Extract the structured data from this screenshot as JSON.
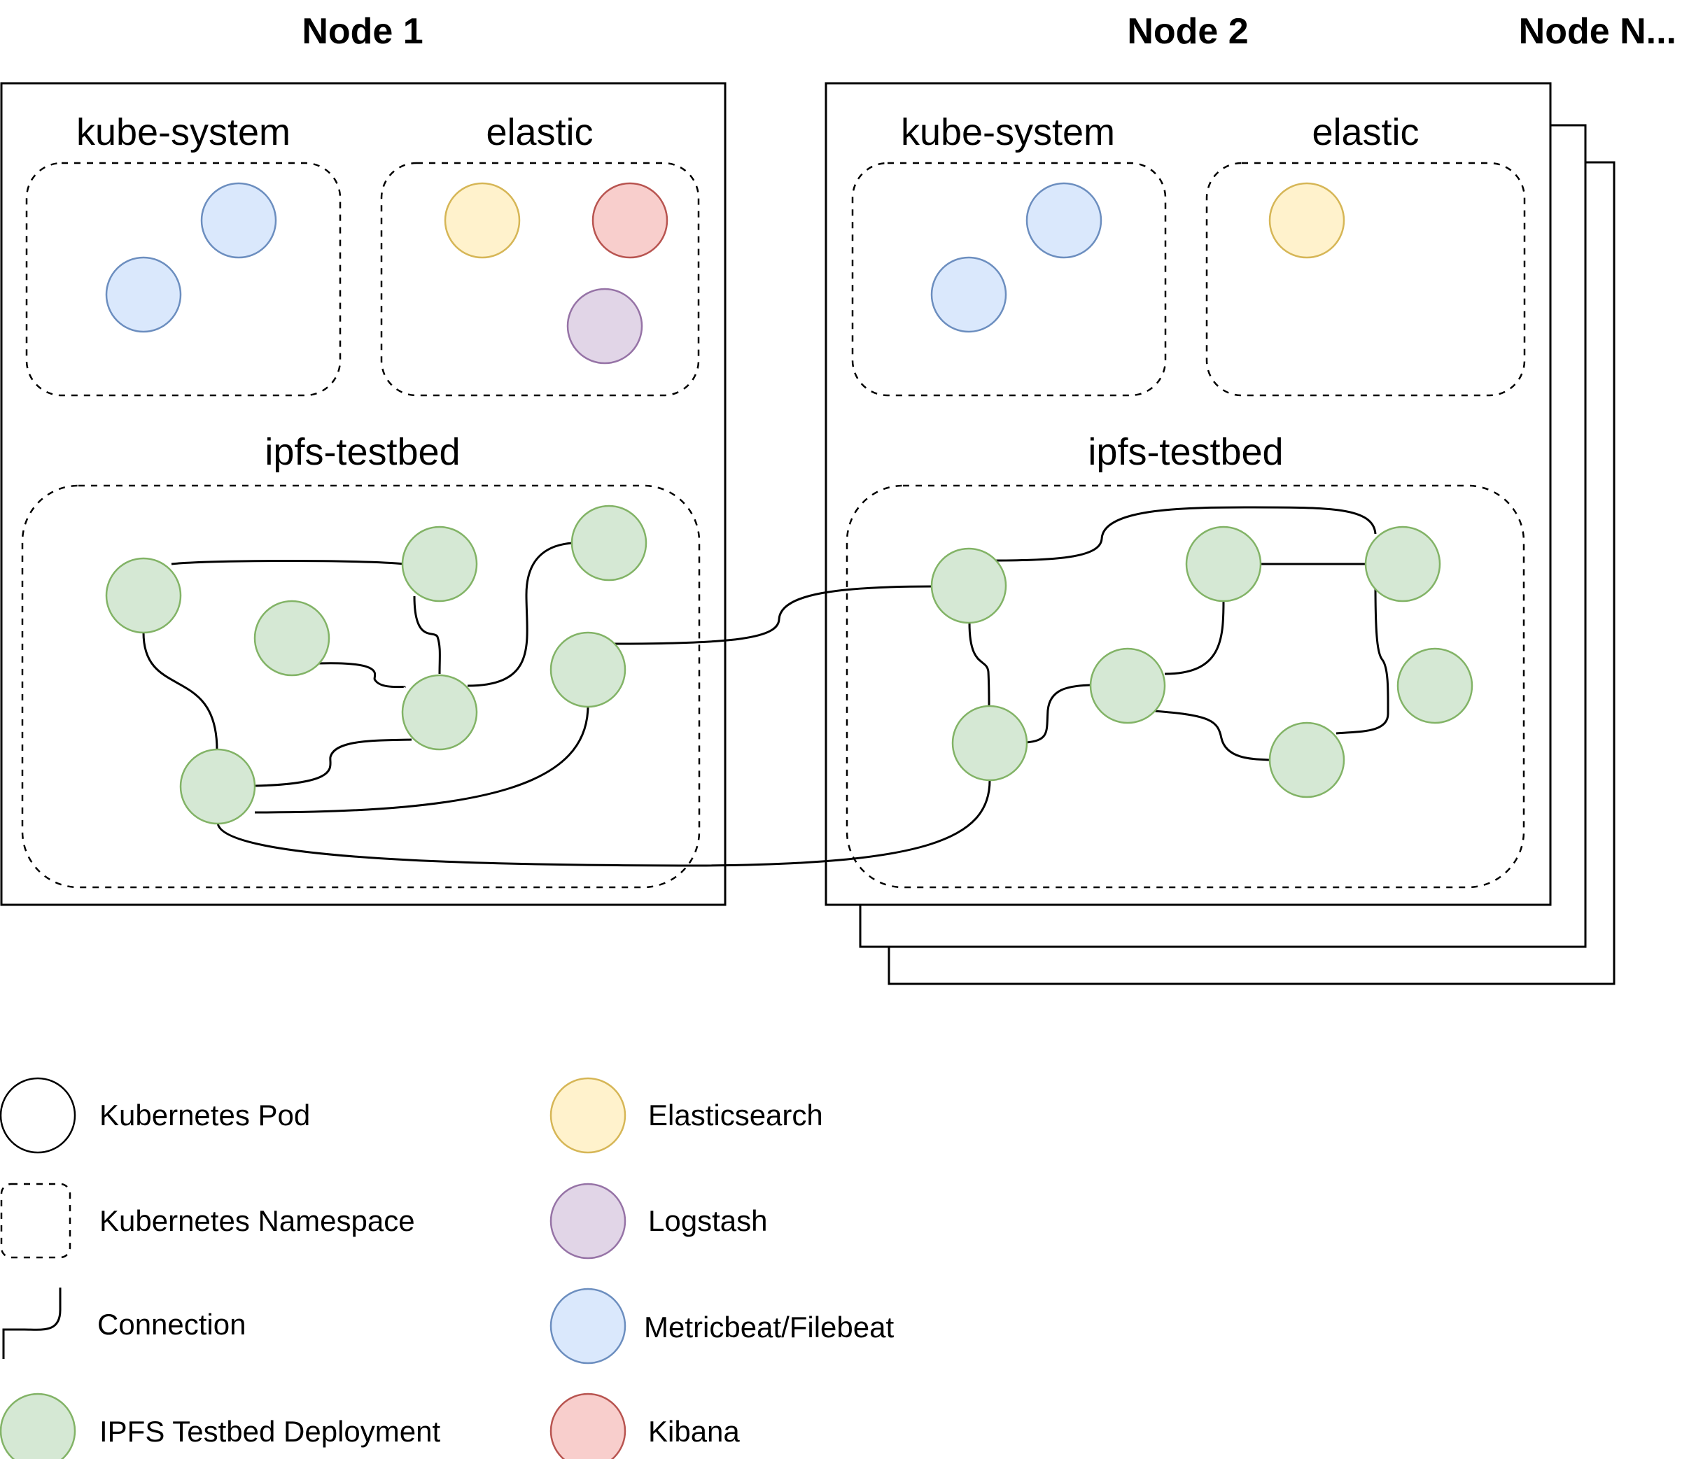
{
  "nodes": {
    "node1": {
      "title": "Node 1"
    },
    "node2": {
      "title": "Node 2"
    },
    "nodeN": {
      "title": "Node N..."
    }
  },
  "namespaces": {
    "kube_system": "kube-system",
    "elastic": "elastic",
    "ipfs_testbed": "ipfs-testbed"
  },
  "legend": {
    "pod": "Kubernetes Pod",
    "namespace": "Kubernetes Namespace",
    "connection": "Connection",
    "ipfs": "IPFS Testbed Deployment",
    "elasticsearch": "Elasticsearch",
    "logstash": "Logstash",
    "metricbeat": "Metricbeat/Filebeat",
    "kibana": "Kibana"
  },
  "colors": {
    "ipfs_fill": "#d5e8d4",
    "ipfs_stroke": "#82b366",
    "elasticsearch_fill": "#fff2cc",
    "elasticsearch_stroke": "#d6b656",
    "logstash_fill": "#e1d5e7",
    "logstash_stroke": "#9673a6",
    "metricbeat_fill": "#dae8fc",
    "metricbeat_stroke": "#6c8ebf",
    "kibana_fill": "#f8cecc",
    "kibana_stroke": "#b85450"
  }
}
